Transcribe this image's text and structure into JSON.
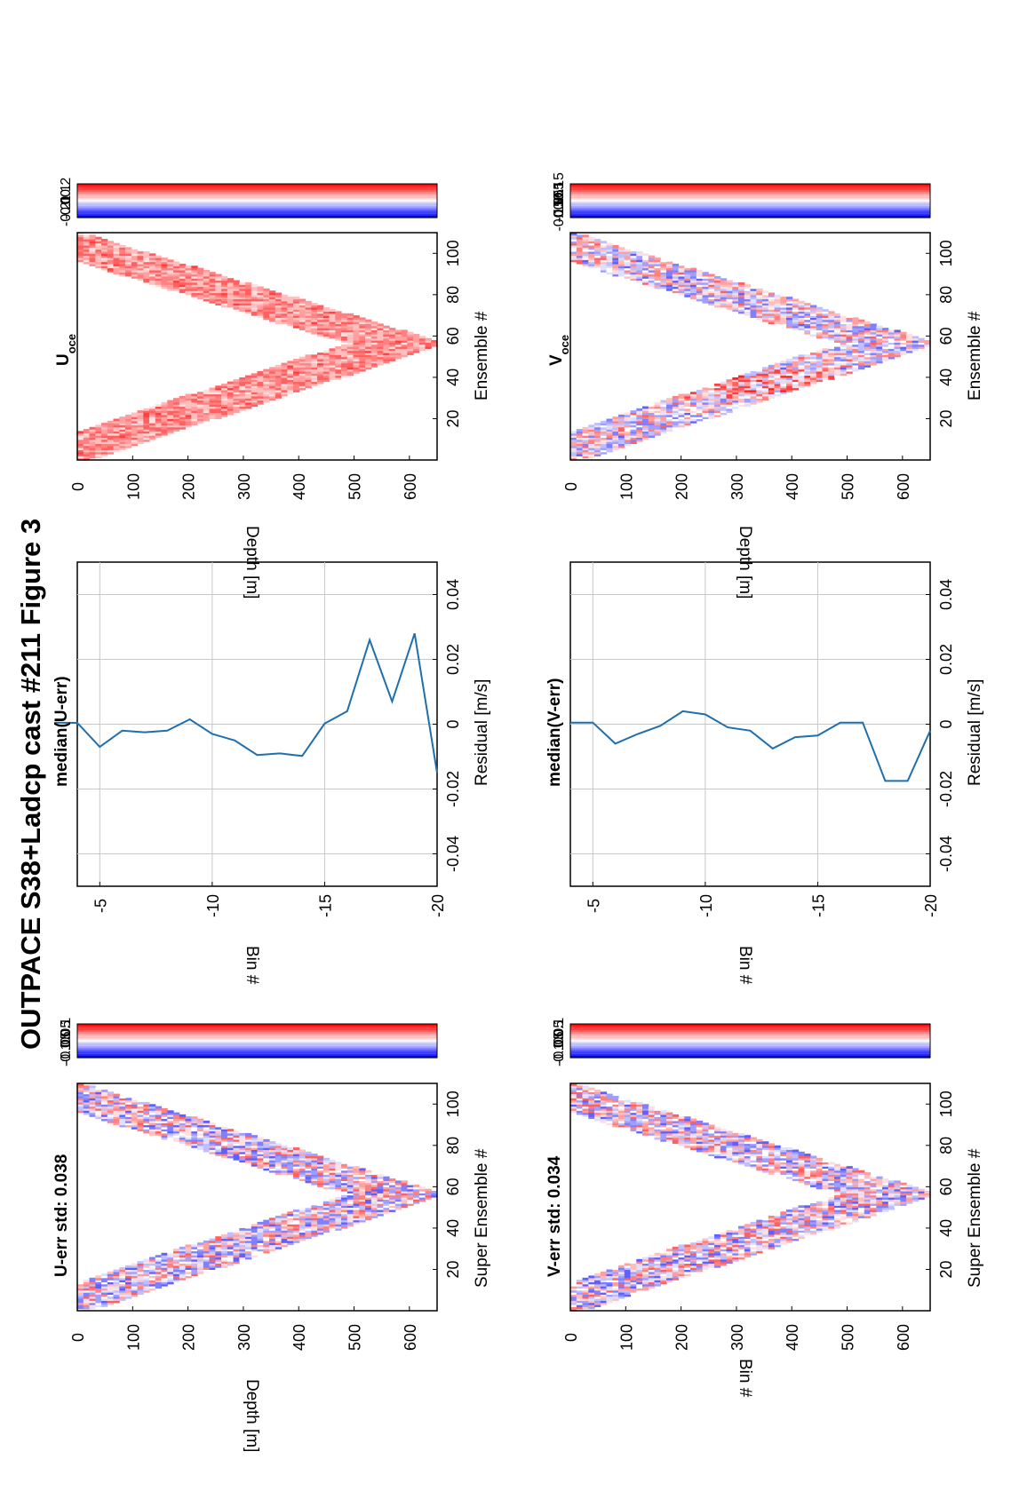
{
  "figure": {
    "title": "OUTPACE S38+Ladcp cast #211  Figure 3",
    "orientation": "rotated-90-ccw"
  },
  "panels": {
    "u_err": {
      "title": "U-err std: 0.038",
      "xlabel": "Super Ensemble #",
      "ylabel": "Depth [m]",
      "xticks": [
        "20",
        "40",
        "60",
        "80",
        "100"
      ],
      "yticks": [
        "0",
        "100",
        "200",
        "300",
        "400",
        "500",
        "600"
      ],
      "cbar_ticks": [
        "0.1",
        "0.05",
        "0",
        "-0.05",
        "-0.1"
      ]
    },
    "v_err": {
      "title": "V-err std: 0.034",
      "xlabel": "Super Ensemble #",
      "ylabel": "Bin #",
      "xticks": [
        "20",
        "40",
        "60",
        "80",
        "100"
      ],
      "yticks": [
        "0",
        "100",
        "200",
        "300",
        "400",
        "500",
        "600"
      ],
      "cbar_ticks": [
        "0.1",
        "0.05",
        "0",
        "-0.05",
        "-0.1"
      ]
    },
    "median_u": {
      "title": "median(U-err)",
      "xlabel": "Residual [m/s]",
      "ylabel": "Bin #",
      "xticks": [
        "-0.04",
        "-0.02",
        "0",
        "0.02",
        "0.04"
      ],
      "yticks": [
        "-5",
        "-10",
        "-15",
        "-20"
      ]
    },
    "median_v": {
      "title": "median(V-err)",
      "xlabel": "Residual [m/s]",
      "ylabel": "Bin #",
      "xticks": [
        "-0.04",
        "-0.02",
        "0",
        "0.02",
        "0.04"
      ],
      "yticks": [
        "-5",
        "-10",
        "-15",
        "-20"
      ]
    },
    "u_oce": {
      "title_main": "U",
      "title_sub": "oce",
      "xlabel": "Ensemble #",
      "ylabel": "Depth [m]",
      "xticks": [
        "20",
        "40",
        "60",
        "80",
        "100"
      ],
      "yticks": [
        "0",
        "100",
        "200",
        "300",
        "400",
        "500",
        "600"
      ],
      "cbar_ticks": [
        "0.2",
        "0.1",
        "0",
        "-0.1",
        "-0.2"
      ]
    },
    "v_oce": {
      "title_main": "V",
      "title_sub": "oce",
      "xlabel": "Ensemble #",
      "ylabel": "Depth [m]",
      "xticks": [
        "20",
        "40",
        "60",
        "80",
        "100"
      ],
      "yticks": [
        "0",
        "100",
        "200",
        "300",
        "400",
        "500",
        "600"
      ],
      "cbar_ticks": [
        "0.15",
        "0.1",
        "0.05",
        "0",
        "-0.05",
        "-0.1",
        "-0.15"
      ]
    }
  },
  "colors": {
    "line": "#1f6fad",
    "positive": "#ff0000",
    "negative": "#0000ff",
    "grid": "#c8c8c8"
  },
  "chart_data": [
    {
      "type": "line",
      "title": "median(U-err)",
      "xlabel": "Residual [m/s]",
      "ylabel": "Bin #",
      "xlim": [
        -0.05,
        0.05
      ],
      "ylim": [
        -20,
        -4
      ],
      "grid": true,
      "series": [
        {
          "x": [
            0.0005,
            0.0004,
            -0.007,
            -0.002,
            -0.0025,
            -0.002,
            0.0015,
            -0.003,
            -0.005,
            -0.0095,
            -0.009,
            -0.0098,
            0.0002,
            0.004,
            0.026,
            0.007,
            0.028,
            -0.015
          ],
          "y": [
            -3,
            -4,
            -5,
            -6,
            -7,
            -8,
            -9,
            -10,
            -11,
            -12,
            -13,
            -14,
            -15,
            -16,
            -17,
            -18,
            -19,
            -20
          ]
        }
      ]
    },
    {
      "type": "line",
      "title": "median(V-err)",
      "xlabel": "Residual [m/s]",
      "ylabel": "Bin #",
      "xlim": [
        -0.05,
        0.05
      ],
      "ylim": [
        -20,
        -4
      ],
      "grid": true,
      "series": [
        {
          "x": [
            0.0005,
            0.0005,
            -0.006,
            -0.003,
            -0.0005,
            0.004,
            0.003,
            -0.001,
            -0.002,
            -0.0075,
            -0.004,
            -0.0035,
            0.0005,
            0.0005,
            -0.0175,
            -0.0175,
            -0.002
          ],
          "y": [
            -4,
            -5,
            -6,
            -7,
            -8,
            -9,
            -10,
            -11,
            -12,
            -13,
            -14,
            -15,
            -16,
            -17,
            -18,
            -19,
            -20
          ]
        }
      ]
    },
    {
      "type": "heatmap",
      "title": "U-err std: 0.038",
      "xlabel": "Super Ensemble #",
      "ylabel": "Depth [m]",
      "xlim": [
        1,
        110
      ],
      "ylim": [
        0,
        650
      ],
      "clim": [
        -0.1,
        0.1
      ],
      "pattern": "v-shaped cast, descending to ~650 m at super ensemble ~57"
    },
    {
      "type": "heatmap",
      "title": "V-err std: 0.034",
      "xlabel": "Super Ensemble #",
      "ylabel": "Bin #",
      "xlim": [
        1,
        110
      ],
      "ylim": [
        0,
        650
      ],
      "clim": [
        -0.1,
        0.1
      ],
      "pattern": "v-shaped cast, descending to ~650 m at super ensemble ~57"
    },
    {
      "type": "heatmap",
      "title": "U oce",
      "xlabel": "Ensemble #",
      "ylabel": "Depth [m]",
      "xlim": [
        1,
        110
      ],
      "ylim": [
        0,
        650
      ],
      "clim": [
        -0.25,
        0.25
      ],
      "pattern": "mostly positive (red) values along the cast track"
    },
    {
      "type": "heatmap",
      "title": "V oce",
      "xlabel": "Ensemble #",
      "ylabel": "Depth [m]",
      "xlim": [
        1,
        110
      ],
      "ylim": [
        0,
        650
      ],
      "clim": [
        -0.15,
        0.15
      ],
      "pattern": "mixed red/blue values along the cast track"
    }
  ]
}
